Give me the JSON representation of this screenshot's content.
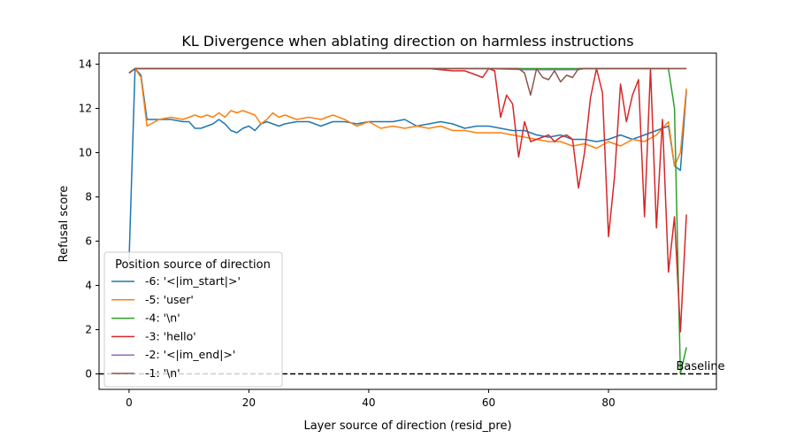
{
  "chart_data": {
    "type": "line",
    "title": "KL Divergence when ablating direction on harmless instructions",
    "xlabel": "Layer source of direction (resid_pre)",
    "ylabel": "Refusal score",
    "xlim": [
      -5,
      98
    ],
    "ylim": [
      -0.7,
      14.5
    ],
    "xticks": [
      0,
      20,
      40,
      60,
      80
    ],
    "yticks": [
      0,
      2,
      4,
      6,
      8,
      10,
      12,
      14
    ],
    "grid": false,
    "legend_title": "Position source of direction",
    "legend_position": "lower-left",
    "baseline": {
      "y": 0,
      "label": "Baseline",
      "style": "dashed",
      "color": "#000000"
    },
    "series": [
      {
        "name": "-6: '<|im_start|>'",
        "color": "#1f77b4",
        "x": [
          0,
          1,
          2,
          3,
          5,
          7,
          9,
          10,
          11,
          12,
          13,
          14,
          15,
          16,
          17,
          18,
          19,
          20,
          21,
          22,
          23,
          24,
          25,
          26,
          28,
          30,
          32,
          34,
          36,
          38,
          40,
          42,
          44,
          46,
          48,
          50,
          52,
          54,
          56,
          58,
          60,
          62,
          64,
          66,
          68,
          70,
          72,
          74,
          76,
          78,
          80,
          82,
          84,
          86,
          88,
          90,
          91,
          92,
          93
        ],
        "values": [
          5.1,
          13.8,
          13.5,
          11.5,
          11.5,
          11.5,
          11.4,
          11.4,
          11.1,
          11.1,
          11.2,
          11.3,
          11.5,
          11.3,
          11.0,
          10.9,
          11.1,
          11.2,
          11.0,
          11.3,
          11.4,
          11.3,
          11.2,
          11.3,
          11.4,
          11.4,
          11.2,
          11.4,
          11.4,
          11.3,
          11.4,
          11.4,
          11.4,
          11.5,
          11.2,
          11.3,
          11.4,
          11.3,
          11.1,
          11.2,
          11.2,
          11.1,
          11.0,
          11.0,
          10.8,
          10.7,
          10.8,
          10.6,
          10.6,
          10.5,
          10.6,
          10.8,
          10.6,
          10.8,
          11.0,
          11.2,
          9.4,
          9.2,
          12.8
        ]
      },
      {
        "name": "-5: 'user'",
        "color": "#ff7f0e",
        "x": [
          0,
          1,
          2,
          3,
          5,
          7,
          9,
          10,
          11,
          12,
          13,
          14,
          15,
          16,
          17,
          18,
          19,
          20,
          21,
          22,
          23,
          24,
          25,
          26,
          28,
          30,
          32,
          34,
          36,
          38,
          40,
          42,
          44,
          46,
          48,
          50,
          52,
          54,
          56,
          58,
          60,
          62,
          64,
          66,
          68,
          70,
          72,
          74,
          76,
          78,
          80,
          82,
          84,
          86,
          88,
          90,
          91,
          92,
          93
        ],
        "values": [
          13.6,
          13.8,
          13.4,
          11.2,
          11.5,
          11.6,
          11.5,
          11.6,
          11.7,
          11.6,
          11.7,
          11.6,
          11.8,
          11.6,
          11.9,
          11.8,
          11.9,
          11.8,
          11.7,
          11.3,
          11.5,
          11.8,
          11.6,
          11.7,
          11.5,
          11.6,
          11.5,
          11.7,
          11.5,
          11.2,
          11.4,
          11.1,
          11.2,
          11.1,
          11.2,
          11.1,
          11.2,
          11.0,
          11.0,
          10.9,
          10.9,
          10.9,
          10.8,
          10.7,
          10.6,
          10.5,
          10.5,
          10.3,
          10.4,
          10.2,
          10.5,
          10.3,
          10.6,
          10.5,
          10.8,
          11.4,
          9.4,
          10.0,
          12.9
        ]
      },
      {
        "name": "-4: '\\n'",
        "color": "#2ca02c",
        "x": [
          0,
          1,
          10,
          20,
          30,
          40,
          50,
          60,
          70,
          80,
          88,
          89,
          90,
          91,
          92,
          93
        ],
        "values": [
          13.6,
          13.8,
          13.8,
          13.8,
          13.8,
          13.8,
          13.8,
          13.8,
          13.8,
          13.8,
          13.8,
          13.8,
          13.8,
          12.0,
          0.0,
          1.2
        ]
      },
      {
        "name": "-3: 'hello'",
        "color": "#d62728",
        "x": [
          0,
          1,
          10,
          20,
          30,
          40,
          50,
          54,
          56,
          58,
          59,
          60,
          61,
          62,
          63,
          64,
          65,
          66,
          67,
          68,
          69,
          70,
          71,
          72,
          73,
          74,
          75,
          76,
          77,
          78,
          79,
          80,
          81,
          82,
          83,
          84,
          85,
          86,
          87,
          88,
          89,
          90,
          91,
          92,
          93
        ],
        "values": [
          13.6,
          13.8,
          13.8,
          13.8,
          13.8,
          13.8,
          13.8,
          13.7,
          13.7,
          13.5,
          13.4,
          13.8,
          13.7,
          11.6,
          12.6,
          12.2,
          9.8,
          11.4,
          10.5,
          10.6,
          10.7,
          10.8,
          10.5,
          10.7,
          10.8,
          10.6,
          8.4,
          10.0,
          12.5,
          13.8,
          12.7,
          6.2,
          8.9,
          13.1,
          11.4,
          12.6,
          13.3,
          7.1,
          13.8,
          6.6,
          11.5,
          4.6,
          7.1,
          1.9,
          7.2
        ]
      },
      {
        "name": "-2: '<|im_end|>'",
        "color": "#9467bd",
        "x": [
          0,
          1,
          10,
          20,
          30,
          40,
          50,
          60,
          66,
          70,
          75,
          76,
          80,
          88,
          90,
          93
        ],
        "values": [
          13.6,
          13.8,
          13.8,
          13.8,
          13.8,
          13.8,
          13.8,
          13.8,
          13.75,
          13.75,
          13.75,
          13.8,
          13.8,
          13.8,
          13.8,
          13.8
        ]
      },
      {
        "name": "-1: '\\n'",
        "color": "#8c564b",
        "x": [
          0,
          1,
          10,
          20,
          30,
          40,
          50,
          60,
          65,
          66,
          67,
          68,
          69,
          70,
          71,
          72,
          73,
          74,
          75,
          76,
          80,
          88,
          90,
          93
        ],
        "values": [
          13.6,
          13.8,
          13.8,
          13.8,
          13.8,
          13.8,
          13.8,
          13.8,
          13.8,
          13.6,
          12.6,
          13.8,
          13.4,
          13.3,
          13.7,
          13.2,
          13.5,
          13.4,
          13.8,
          13.8,
          13.8,
          13.8,
          13.8,
          13.8
        ]
      }
    ]
  }
}
